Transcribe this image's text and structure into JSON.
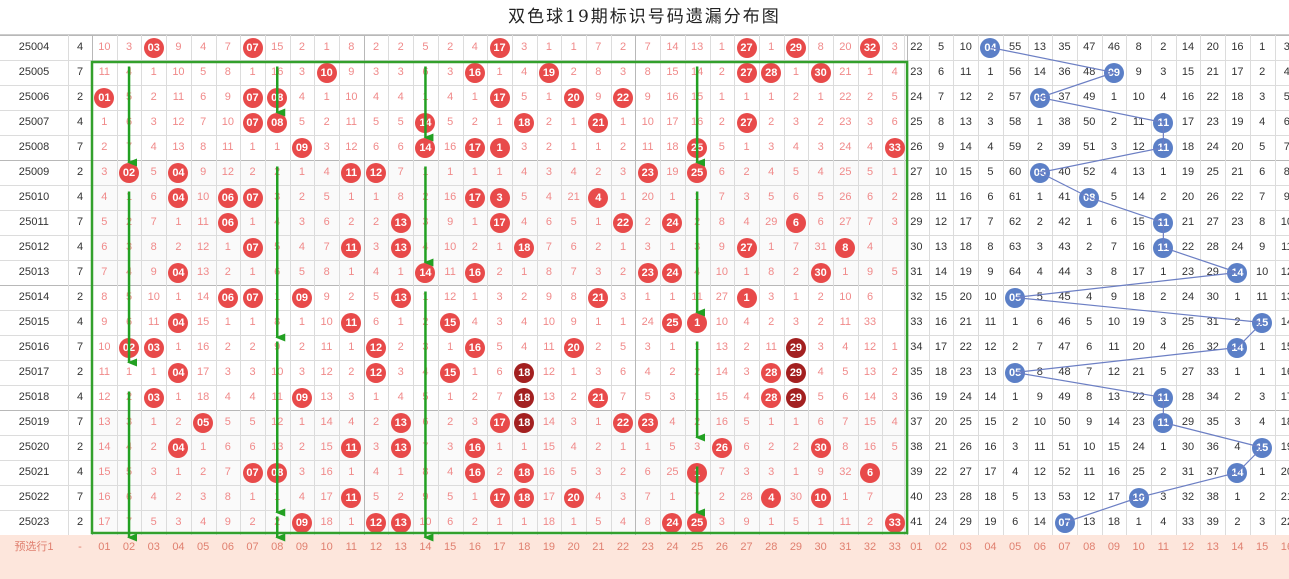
{
  "title": "双色球19期标识号码遗漏分布图",
  "colors": {
    "red_ball": "#e84a4a",
    "dark_red_ball": "#a32020",
    "blue_ball": "#5b7fc7",
    "miss_red": "#f08a8a",
    "grid_line": "#dcdcdc",
    "highlight_box": "#33a02c",
    "arrow": "#22a022",
    "blue_line": "#6c7fc4"
  },
  "footer": {
    "issue_label": "预选行1",
    "sum_label": "-",
    "red_labels": [
      "01",
      "02",
      "03",
      "04",
      "05",
      "06",
      "07",
      "08",
      "09",
      "10",
      "11",
      "12",
      "13",
      "14",
      "15",
      "16",
      "17",
      "18",
      "19",
      "20",
      "21",
      "22",
      "23",
      "24",
      "25",
      "26",
      "27",
      "28",
      "29",
      "30",
      "31",
      "32",
      "33"
    ],
    "blue_labels": [
      "01",
      "02",
      "03",
      "04",
      "05",
      "06",
      "07",
      "08",
      "09",
      "10",
      "11",
      "12",
      "13",
      "14",
      "15",
      "16"
    ]
  },
  "rows": [
    {
      "issue": "25004",
      "sum": "4",
      "red": [
        "10",
        "3",
        "03",
        "9",
        "4",
        "7",
        "07",
        "15",
        "2",
        "1",
        "8",
        "2",
        "2",
        "5",
        "2",
        "4",
        "17",
        "3",
        "1",
        "1",
        "7",
        "2",
        "7",
        "14",
        "13",
        "1",
        "27",
        "1",
        "29",
        "8",
        "20",
        "32",
        "3"
      ],
      "hits": [
        3,
        7,
        17,
        27,
        29,
        32
      ],
      "blue": [
        "22",
        "5",
        "10",
        "04",
        "55",
        "13",
        "35",
        "47",
        "46",
        "8",
        "2",
        "14",
        "20",
        "16",
        "1",
        "3"
      ],
      "bhit": 4
    },
    {
      "issue": "25005",
      "sum": "7",
      "red": [
        "11",
        "4",
        "1",
        "10",
        "5",
        "8",
        "1",
        "16",
        "3",
        "10",
        "9",
        "3",
        "3",
        "6",
        "3",
        "16",
        "1",
        "4",
        "19",
        "2",
        "8",
        "3",
        "8",
        "15",
        "14",
        "2",
        "27",
        "28",
        "1",
        "30",
        "21",
        "1",
        "4"
      ],
      "hits": [
        10,
        16,
        19,
        27,
        28,
        30
      ],
      "blue": [
        "23",
        "6",
        "11",
        "1",
        "56",
        "14",
        "36",
        "48",
        "09",
        "9",
        "3",
        "15",
        "21",
        "17",
        "2",
        "4"
      ],
      "bhit": 9
    },
    {
      "issue": "25006",
      "sum": "2",
      "red": [
        "01",
        "5",
        "2",
        "11",
        "6",
        "9",
        "07",
        "08",
        "4",
        "1",
        "10",
        "4",
        "4",
        "1",
        "4",
        "1",
        "17",
        "5",
        "1",
        "20",
        "9",
        "22",
        "9",
        "16",
        "15",
        "1",
        "1",
        "1",
        "2",
        "1",
        "22",
        "2",
        "5"
      ],
      "hits": [
        1,
        7,
        8,
        17,
        20,
        22
      ],
      "blue": [
        "24",
        "7",
        "12",
        "2",
        "57",
        "06",
        "37",
        "49",
        "1",
        "10",
        "4",
        "16",
        "22",
        "18",
        "3",
        "5"
      ],
      "bhit": 6
    },
    {
      "issue": "25007",
      "sum": "4",
      "red": [
        "1",
        "6",
        "3",
        "12",
        "7",
        "10",
        "07",
        "08",
        "5",
        "2",
        "11",
        "5",
        "5",
        "14",
        "5",
        "2",
        "1",
        "18",
        "2",
        "1",
        "21",
        "1",
        "10",
        "17",
        "16",
        "2",
        "27",
        "2",
        "3",
        "2",
        "23",
        "3",
        "6"
      ],
      "hits": [
        7,
        8,
        14,
        18,
        21,
        27
      ],
      "blue": [
        "25",
        "8",
        "13",
        "3",
        "58",
        "1",
        "38",
        "50",
        "2",
        "11",
        "11",
        "17",
        "23",
        "19",
        "4",
        "6"
      ],
      "bhit": 11
    },
    {
      "issue": "25008",
      "sum": "7",
      "red": [
        "2",
        "7",
        "4",
        "13",
        "8",
        "11",
        "1",
        "1",
        "09",
        "3",
        "12",
        "6",
        "6",
        "14",
        "16",
        "17",
        "1",
        "3",
        "2",
        "1",
        "1",
        "2",
        "11",
        "18",
        "25",
        "5",
        "1",
        "3",
        "4",
        "3",
        "24",
        "4",
        "33"
      ],
      "hits": [
        9,
        14,
        16,
        17,
        25,
        33
      ],
      "blue": [
        "26",
        "9",
        "14",
        "4",
        "59",
        "2",
        "39",
        "51",
        "3",
        "12",
        "11",
        "18",
        "24",
        "20",
        "5",
        "7"
      ],
      "bhit": 11
    },
    {
      "issue": "25009",
      "sum": "2",
      "red": [
        "3",
        "02",
        "5",
        "04",
        "9",
        "12",
        "2",
        "2",
        "1",
        "4",
        "11",
        "12",
        "7",
        "1",
        "1",
        "1",
        "1",
        "4",
        "3",
        "4",
        "2",
        "3",
        "23",
        "19",
        "25",
        "6",
        "2",
        "4",
        "5",
        "4",
        "25",
        "5",
        "1"
      ],
      "hits": [
        2,
        4,
        11,
        12,
        23,
        25
      ],
      "blue": [
        "27",
        "10",
        "15",
        "5",
        "60",
        "06",
        "40",
        "52",
        "4",
        "13",
        "1",
        "19",
        "25",
        "21",
        "6",
        "8"
      ],
      "bhit": 6
    },
    {
      "issue": "25010",
      "sum": "4",
      "red": [
        "4",
        "1",
        "6",
        "04",
        "10",
        "06",
        "07",
        "3",
        "2",
        "5",
        "1",
        "1",
        "8",
        "2",
        "16",
        "17",
        "3",
        "5",
        "4",
        "21",
        "4",
        "1",
        "20",
        "1",
        "1",
        "7",
        "3",
        "5",
        "6",
        "5",
        "26",
        "6",
        "2"
      ],
      "hits": [
        4,
        6,
        7,
        16,
        17,
        21
      ],
      "blue": [
        "28",
        "11",
        "16",
        "6",
        "61",
        "1",
        "41",
        "08",
        "5",
        "14",
        "2",
        "20",
        "26",
        "22",
        "7",
        "9"
      ],
      "bhit": 8
    },
    {
      "issue": "25011",
      "sum": "7",
      "red": [
        "5",
        "2",
        "7",
        "1",
        "11",
        "06",
        "1",
        "4",
        "3",
        "6",
        "2",
        "2",
        "13",
        "3",
        "9",
        "1",
        "17",
        "4",
        "6",
        "5",
        "1",
        "22",
        "2",
        "24",
        "2",
        "8",
        "4",
        "29",
        "6",
        "6",
        "27",
        "7",
        "3"
      ],
      "hits": [
        6,
        13,
        17,
        22,
        24,
        29
      ],
      "blue": [
        "29",
        "12",
        "17",
        "7",
        "62",
        "2",
        "42",
        "1",
        "6",
        "15",
        "11",
        "21",
        "27",
        "23",
        "8",
        "10"
      ],
      "bhit": 11
    },
    {
      "issue": "25012",
      "sum": "4",
      "red": [
        "6",
        "3",
        "8",
        "2",
        "12",
        "1",
        "07",
        "5",
        "4",
        "7",
        "11",
        "3",
        "13",
        "4",
        "10",
        "2",
        "1",
        "18",
        "7",
        "6",
        "2",
        "1",
        "3",
        "1",
        "3",
        "9",
        "27",
        "1",
        "7",
        "31",
        "8",
        "4"
      ],
      "hits": [
        7,
        11,
        13,
        18,
        27,
        31
      ],
      "blue": [
        "30",
        "13",
        "18",
        "8",
        "63",
        "3",
        "43",
        "2",
        "7",
        "16",
        "11",
        "22",
        "28",
        "24",
        "9",
        "11"
      ],
      "bhit": 11
    },
    {
      "issue": "25013",
      "sum": "7",
      "red": [
        "7",
        "4",
        "9",
        "04",
        "13",
        "2",
        "1",
        "6",
        "5",
        "8",
        "1",
        "4",
        "1",
        "14",
        "11",
        "16",
        "2",
        "1",
        "8",
        "7",
        "3",
        "2",
        "23",
        "24",
        "4",
        "10",
        "1",
        "8",
        "2",
        "30",
        "1",
        "9",
        "5"
      ],
      "hits": [
        4,
        14,
        16,
        23,
        24,
        30
      ],
      "blue": [
        "31",
        "14",
        "19",
        "9",
        "64",
        "4",
        "44",
        "3",
        "8",
        "17",
        "1",
        "23",
        "29",
        "14",
        "10",
        "12"
      ],
      "bhit": 14
    },
    {
      "issue": "25014",
      "sum": "2",
      "red": [
        "8",
        "5",
        "10",
        "1",
        "14",
        "06",
        "07",
        "1",
        "09",
        "9",
        "2",
        "5",
        "13",
        "1",
        "12",
        "1",
        "3",
        "2",
        "9",
        "8",
        "21",
        "3",
        "1",
        "1",
        "11",
        "27",
        "1",
        "3",
        "1",
        "2",
        "10",
        "6"
      ],
      "hits": [
        6,
        7,
        9,
        13,
        21,
        27
      ],
      "blue": [
        "32",
        "15",
        "20",
        "10",
        "05",
        "5",
        "45",
        "4",
        "9",
        "18",
        "2",
        "24",
        "30",
        "1",
        "11",
        "13"
      ],
      "bhit": 5
    },
    {
      "issue": "25015",
      "sum": "4",
      "red": [
        "9",
        "6",
        "11",
        "04",
        "15",
        "1",
        "1",
        "8",
        "1",
        "10",
        "11",
        "6",
        "1",
        "2",
        "15",
        "4",
        "3",
        "4",
        "10",
        "9",
        "1",
        "1",
        "24",
        "25",
        "1",
        "10",
        "4",
        "2",
        "3",
        "2",
        "11",
        "33"
      ],
      "hits": [
        4,
        11,
        15,
        24,
        25,
        33
      ],
      "blue": [
        "33",
        "16",
        "21",
        "11",
        "1",
        "6",
        "46",
        "5",
        "10",
        "19",
        "3",
        "25",
        "31",
        "2",
        "15",
        "14"
      ],
      "bhit": 15
    },
    {
      "issue": "25016",
      "sum": "7",
      "red": [
        "10",
        "02",
        "03",
        "1",
        "16",
        "2",
        "2",
        "9",
        "2",
        "11",
        "1",
        "12",
        "2",
        "3",
        "1",
        "16",
        "5",
        "4",
        "11",
        "20",
        "2",
        "5",
        "3",
        "1",
        "1",
        "13",
        "2",
        "11",
        "29",
        "3",
        "4",
        "12",
        "1"
      ],
      "hits": [
        2,
        3,
        12,
        16,
        20,
        29
      ],
      "blue": [
        "34",
        "17",
        "22",
        "12",
        "2",
        "7",
        "47",
        "6",
        "11",
        "20",
        "4",
        "26",
        "32",
        "14",
        "1",
        "15"
      ],
      "bhit": 14
    },
    {
      "issue": "25017",
      "sum": "2",
      "red": [
        "11",
        "1",
        "1",
        "04",
        "17",
        "3",
        "3",
        "10",
        "3",
        "12",
        "2",
        "12",
        "3",
        "4",
        "15",
        "1",
        "6",
        "18",
        "12",
        "1",
        "3",
        "6",
        "4",
        "2",
        "2",
        "14",
        "3",
        "28",
        "29",
        "4",
        "5",
        "13",
        "2"
      ],
      "hits": [
        4,
        12,
        15,
        18,
        28,
        29
      ],
      "blue": [
        "35",
        "18",
        "23",
        "13",
        "05",
        "8",
        "48",
        "7",
        "12",
        "21",
        "5",
        "27",
        "33",
        "1",
        "1",
        "16"
      ],
      "bhit": 5
    },
    {
      "issue": "25018",
      "sum": "4",
      "red": [
        "12",
        "2",
        "03",
        "1",
        "18",
        "4",
        "4",
        "11",
        "09",
        "13",
        "3",
        "1",
        "4",
        "5",
        "1",
        "2",
        "7",
        "18",
        "13",
        "2",
        "21",
        "7",
        "5",
        "3",
        "1",
        "15",
        "4",
        "28",
        "29",
        "5",
        "6",
        "14",
        "3"
      ],
      "hits": [
        3,
        9,
        18,
        21,
        28,
        29
      ],
      "blue": [
        "36",
        "19",
        "24",
        "14",
        "1",
        "9",
        "49",
        "8",
        "13",
        "22",
        "11",
        "28",
        "34",
        "2",
        "3",
        "17"
      ],
      "bhit": 11
    },
    {
      "issue": "25019",
      "sum": "7",
      "red": [
        "13",
        "3",
        "1",
        "2",
        "05",
        "5",
        "5",
        "12",
        "1",
        "14",
        "4",
        "2",
        "13",
        "6",
        "2",
        "3",
        "17",
        "18",
        "14",
        "3",
        "1",
        "22",
        "23",
        "4",
        "2",
        "16",
        "5",
        "1",
        "1",
        "6",
        "7",
        "15",
        "4"
      ],
      "hits": [
        5,
        13,
        17,
        18,
        22,
        23
      ],
      "blue": [
        "37",
        "20",
        "25",
        "15",
        "2",
        "10",
        "50",
        "9",
        "14",
        "23",
        "11",
        "29",
        "35",
        "3",
        "4",
        "18"
      ],
      "bhit": 11
    },
    {
      "issue": "25020",
      "sum": "2",
      "red": [
        "14",
        "4",
        "2",
        "04",
        "1",
        "6",
        "6",
        "13",
        "2",
        "15",
        "11",
        "3",
        "13",
        "7",
        "3",
        "16",
        "1",
        "1",
        "15",
        "4",
        "2",
        "1",
        "1",
        "5",
        "3",
        "26",
        "6",
        "2",
        "2",
        "30",
        "8",
        "16",
        "5"
      ],
      "hits": [
        4,
        11,
        13,
        16,
        26,
        30
      ],
      "blue": [
        "38",
        "21",
        "26",
        "16",
        "3",
        "11",
        "51",
        "10",
        "15",
        "24",
        "1",
        "30",
        "36",
        "4",
        "15",
        "19"
      ],
      "bhit": 15
    },
    {
      "issue": "25021",
      "sum": "4",
      "red": [
        "15",
        "5",
        "3",
        "1",
        "2",
        "7",
        "07",
        "08",
        "3",
        "16",
        "1",
        "4",
        "1",
        "8",
        "4",
        "16",
        "2",
        "18",
        "16",
        "5",
        "3",
        "2",
        "6",
        "25",
        "1",
        "7",
        "3",
        "3",
        "1",
        "9",
        "32",
        "6"
      ],
      "hits": [
        7,
        8,
        16,
        18,
        25,
        32
      ],
      "blue": [
        "39",
        "22",
        "27",
        "17",
        "4",
        "12",
        "52",
        "11",
        "16",
        "25",
        "2",
        "31",
        "37",
        "14",
        "1",
        "20"
      ],
      "bhit": 14
    },
    {
      "issue": "25022",
      "sum": "7",
      "red": [
        "16",
        "6",
        "4",
        "2",
        "3",
        "8",
        "1",
        "1",
        "4",
        "17",
        "11",
        "5",
        "2",
        "9",
        "5",
        "1",
        "17",
        "18",
        "17",
        "20",
        "4",
        "3",
        "7",
        "1",
        "7",
        "2",
        "28",
        "4",
        "30",
        "10",
        "1",
        "7"
      ],
      "hits": [
        11,
        17,
        18,
        20,
        28,
        30
      ],
      "blue": [
        "40",
        "23",
        "28",
        "18",
        "5",
        "13",
        "53",
        "12",
        "17",
        "10",
        "3",
        "32",
        "38",
        "1",
        "2",
        "21"
      ],
      "bhit": 10
    },
    {
      "issue": "25023",
      "sum": "2",
      "red": [
        "17",
        "7",
        "5",
        "3",
        "4",
        "9",
        "2",
        "2",
        "09",
        "18",
        "1",
        "12",
        "13",
        "10",
        "6",
        "2",
        "1",
        "1",
        "18",
        "1",
        "5",
        "4",
        "8",
        "24",
        "25",
        "3",
        "9",
        "1",
        "5",
        "1",
        "11",
        "2",
        "33"
      ],
      "hits": [
        9,
        12,
        13,
        24,
        25,
        33
      ],
      "blue": [
        "41",
        "24",
        "29",
        "19",
        "6",
        "14",
        "07",
        "13",
        "18",
        "1",
        "4",
        "33",
        "39",
        "2",
        "3",
        "22"
      ],
      "bhit": 7
    }
  ]
}
